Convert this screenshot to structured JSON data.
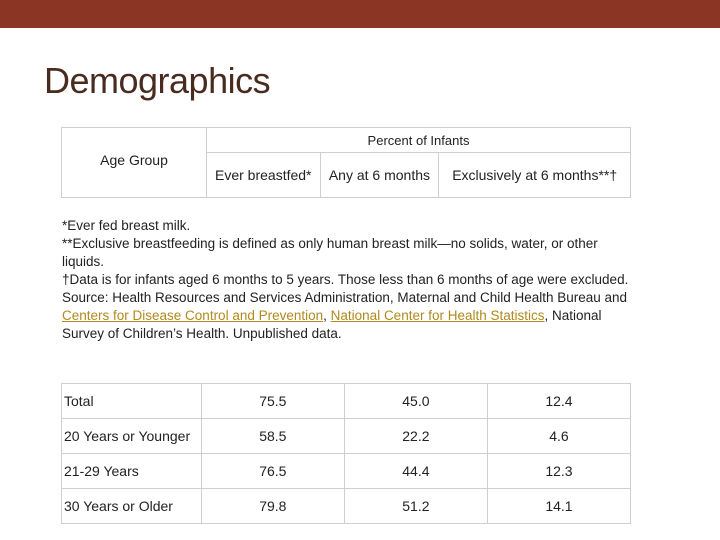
{
  "title": "Demographics",
  "header": {
    "age_group": "Age Group",
    "percent_of_infants": "Percent of Infants",
    "columns": [
      "Ever breastfed*",
      "Any at 6 months",
      "Exclusively at 6 months**†"
    ]
  },
  "notes": {
    "line1": "*Ever fed breast milk.",
    "line2": "**Exclusive breastfeeding is defined as only human breast milk—no solids, water, or other liquids.",
    "line3": "†Data is for infants aged 6 months to 5 years. Those less than 6 months of age were excluded.",
    "source_prefix": "Source: Health Resources and Services Administration, Maternal and Child Health Bureau and ",
    "link1": "Centers for Disease Control and Prevention",
    "sep": ", ",
    "link2": "National Center for Health Statistics",
    "source_suffix": ", National Survey of Children’s Health. Unpublished data."
  },
  "rows": [
    {
      "label": "Total",
      "ever": "75.5",
      "any6": "45.0",
      "excl6": "12.4"
    },
    {
      "label": "20 Years or Younger",
      "ever": "58.5",
      "any6": "22.2",
      "excl6": "4.6"
    },
    {
      "label": "21-29 Years",
      "ever": "76.5",
      "any6": "44.4",
      "excl6": "12.3"
    },
    {
      "label": "30 Years or Older",
      "ever": "79.8",
      "any6": "51.2",
      "excl6": "14.1"
    }
  ],
  "colors": {
    "top_bar": "#8b3525",
    "title": "#4a2b20",
    "link": "#b08a1e"
  }
}
